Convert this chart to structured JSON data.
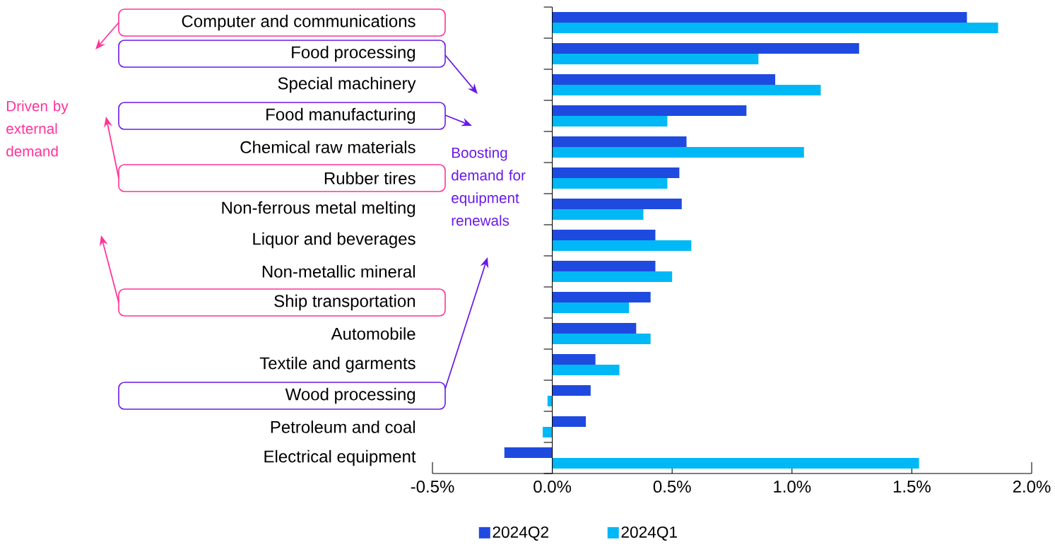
{
  "chart_data": {
    "type": "bar",
    "orientation": "horizontal",
    "categories": [
      "Computer and communications",
      "Food processing",
      "Special machinery",
      "Food manufacturing",
      "Chemical raw materials",
      "Rubber tires",
      "Non-ferrous metal melting",
      "Liquor and beverages",
      "Non-metallic mineral",
      "Ship transportation",
      "Automobile",
      "Textile and garments",
      "Wood processing",
      "Petroleum and coal",
      "Electrical equipment"
    ],
    "series": [
      {
        "name": "2024Q2",
        "color": "#1f4ae0",
        "values": [
          1.73,
          1.28,
          0.93,
          0.81,
          0.56,
          0.53,
          0.54,
          0.43,
          0.43,
          0.41,
          0.35,
          0.18,
          0.16,
          0.14,
          -0.2
        ]
      },
      {
        "name": "2024Q1",
        "color": "#00b8f5",
        "values": [
          1.86,
          0.86,
          1.12,
          0.48,
          1.05,
          0.48,
          0.38,
          0.58,
          0.5,
          0.32,
          0.41,
          0.28,
          -0.02,
          -0.04,
          1.53
        ]
      }
    ],
    "xlim": [
      -0.5,
      2.0
    ],
    "xticks": [
      {
        "value": -0.5,
        "label": "-0.5%"
      },
      {
        "value": 0.0,
        "label": "0.0%"
      },
      {
        "value": 0.5,
        "label": "0.5%"
      },
      {
        "value": 1.0,
        "label": "1.0%"
      },
      {
        "value": 1.5,
        "label": "1.5%"
      },
      {
        "value": 2.0,
        "label": "2.0%"
      }
    ],
    "legend": "bottom",
    "annotations": [
      "Driven by external demand",
      "Boosting demand for equipment renewals"
    ]
  }
}
